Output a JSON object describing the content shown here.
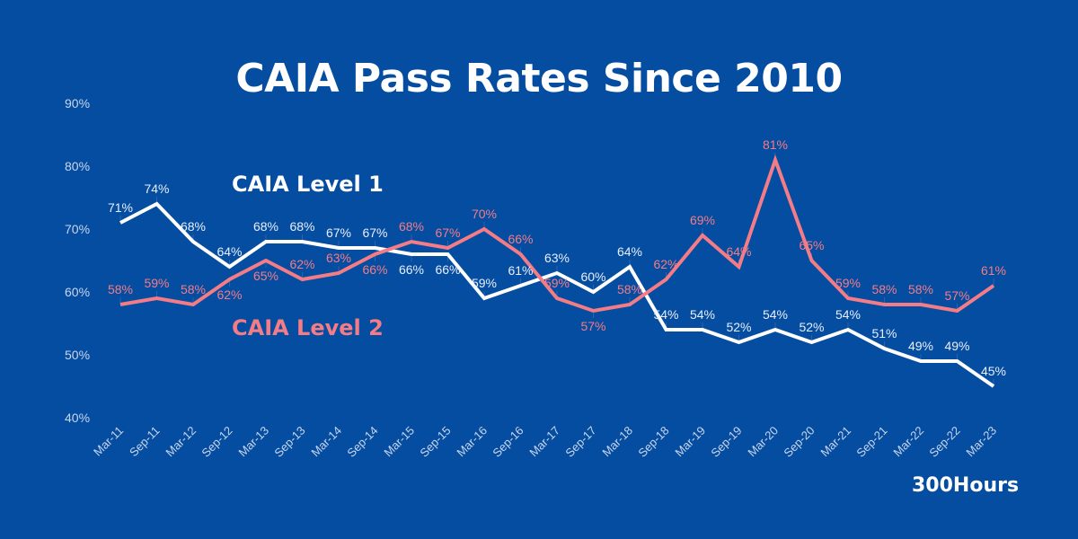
{
  "chart_data": {
    "type": "line",
    "title": "CAIA Pass Rates Since 2010",
    "categories": [
      "Mar-11",
      "Sep-11",
      "Mar-12",
      "Sep-12",
      "Mar-13",
      "Sep-13",
      "Mar-14",
      "Sep-14",
      "Mar-15",
      "Sep-15",
      "Mar-16",
      "Sep-16",
      "Mar-17",
      "Sep-17",
      "Mar-18",
      "Sep-18",
      "Mar-19",
      "Sep-19",
      "Mar-20",
      "Sep-20",
      "Mar-21",
      "Sep-21",
      "Mar-22",
      "Sep-22",
      "Mar-23"
    ],
    "series": [
      {
        "name": "CAIA Level 1",
        "color": "#ffffff",
        "values": [
          71,
          74,
          68,
          64,
          68,
          68,
          67,
          67,
          66,
          66,
          59,
          61,
          63,
          60,
          64,
          54,
          54,
          52,
          54,
          52,
          54,
          51,
          49,
          49,
          45
        ]
      },
      {
        "name": "CAIA Level 2",
        "color": "#f47c86",
        "values": [
          58,
          59,
          58,
          62,
          65,
          62,
          63,
          66,
          68,
          67,
          70,
          66,
          59,
          57,
          58,
          62,
          69,
          64,
          81,
          65,
          59,
          58,
          58,
          57,
          61
        ]
      }
    ],
    "ylim": [
      40,
      90
    ],
    "yticks": [
      "40%",
      "50%",
      "60%",
      "70%",
      "80%",
      "90%"
    ],
    "ytick_values": [
      40,
      50,
      60,
      70,
      80,
      90
    ],
    "value_suffix": "%",
    "grid": false,
    "legend": "inline labels"
  },
  "brand": "300Hours",
  "colors": {
    "background": "#054da1",
    "axis_text": "#c9d6ee"
  }
}
